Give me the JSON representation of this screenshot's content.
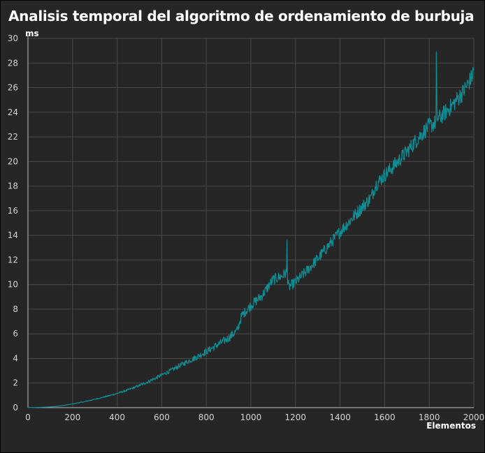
{
  "chart_data": {
    "type": "line",
    "title": "Analisis temporal del algoritmo de ordenamiento de burbuja",
    "xlabel": "Elementos",
    "ylabel": "ms",
    "xlim": [
      0,
      2000
    ],
    "ylim": [
      0,
      30
    ],
    "x_ticks": [
      0,
      200,
      400,
      600,
      800,
      1000,
      1200,
      1400,
      1600,
      1800,
      2000
    ],
    "y_ticks": [
      0,
      2,
      4,
      6,
      8,
      10,
      12,
      14,
      16,
      18,
      20,
      22,
      24,
      26,
      28,
      30
    ],
    "grid": true,
    "series": [
      {
        "color": "#0e8f96",
        "x": [
          0,
          50,
          100,
          150,
          200,
          250,
          300,
          350,
          400,
          450,
          500,
          550,
          600,
          650,
          700,
          750,
          800,
          850,
          900,
          940,
          950,
          960,
          1000,
          1050,
          1080,
          1100,
          1140,
          1160,
          1162,
          1165,
          1170,
          1200,
          1250,
          1300,
          1350,
          1400,
          1450,
          1500,
          1540,
          1550,
          1560,
          1600,
          1650,
          1700,
          1750,
          1800,
          1815,
          1830,
          1832,
          1835,
          1850,
          1900,
          1950,
          1990,
          2000
        ],
        "y": [
          0.0,
          0.02,
          0.06,
          0.15,
          0.3,
          0.47,
          0.68,
          0.9,
          1.15,
          1.45,
          1.8,
          2.2,
          2.65,
          3.1,
          3.6,
          4.05,
          4.55,
          5.1,
          5.65,
          6.3,
          7.0,
          7.5,
          8.3,
          9.1,
          9.9,
          10.4,
          10.7,
          11.0,
          13.4,
          10.2,
          9.8,
          10.2,
          11.1,
          12.1,
          13.2,
          14.3,
          15.3,
          16.3,
          17.1,
          17.6,
          18.1,
          18.9,
          19.8,
          20.8,
          21.9,
          22.9,
          23.0,
          23.2,
          28.6,
          23.5,
          23.6,
          24.5,
          25.6,
          26.8,
          27.5
        ]
      }
    ]
  }
}
